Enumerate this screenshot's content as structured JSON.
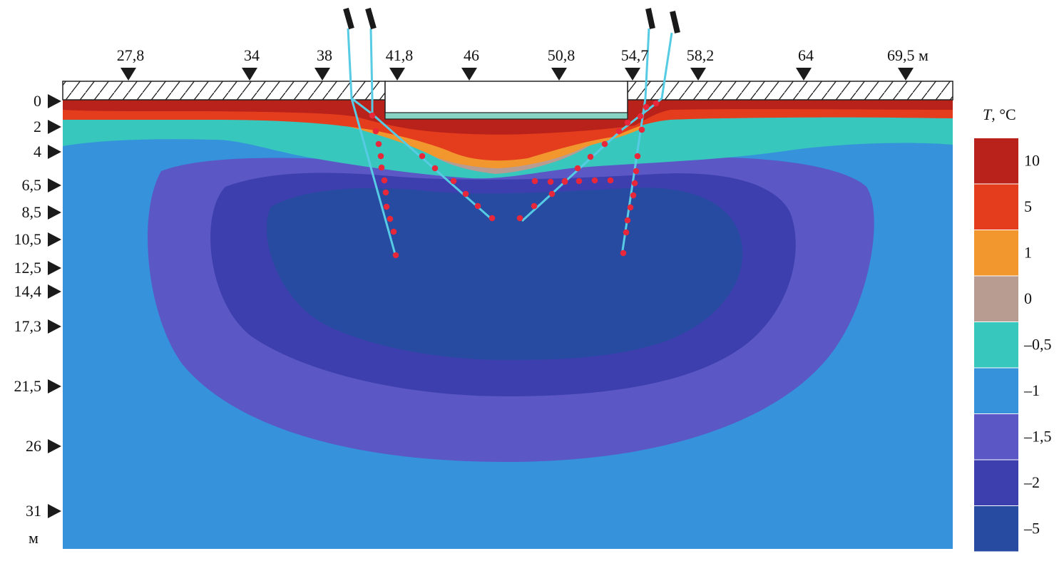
{
  "top_markers": [
    "27,8",
    "34",
    "38",
    "41,8",
    "46",
    "50,8",
    "54,7",
    "58,2",
    "64",
    "69,5 м"
  ],
  "depth_markers": [
    "0",
    "2",
    "4",
    "6,5",
    "8,5",
    "10,5",
    "12,5",
    "14,4",
    "17,3",
    "21,5",
    "26",
    "31"
  ],
  "depth_unit": "м",
  "legend": {
    "title_symbol": "T",
    "title_unit": ", °C",
    "entries": [
      {
        "label": "10",
        "color": "#b8221a"
      },
      {
        "label": "5",
        "color": "#e43d1e"
      },
      {
        "label": "1",
        "color": "#f2962e"
      },
      {
        "label": "0",
        "color": "#b89c92"
      },
      {
        "label": "–0,5",
        "color": "#38c7bd"
      },
      {
        "label": "–1",
        "color": "#3592db"
      },
      {
        "label": "–1,5",
        "color": "#5b58c5"
      },
      {
        "label": "–2",
        "color": "#3e3fae"
      },
      {
        "label": "–5",
        "color": "#274ba1"
      }
    ]
  },
  "colors": {
    "probe_line": "#56cbe3",
    "sensor_dot": "#e8283a",
    "slab_fill": "#88d2c4",
    "marker": "#1b1b1b"
  }
}
